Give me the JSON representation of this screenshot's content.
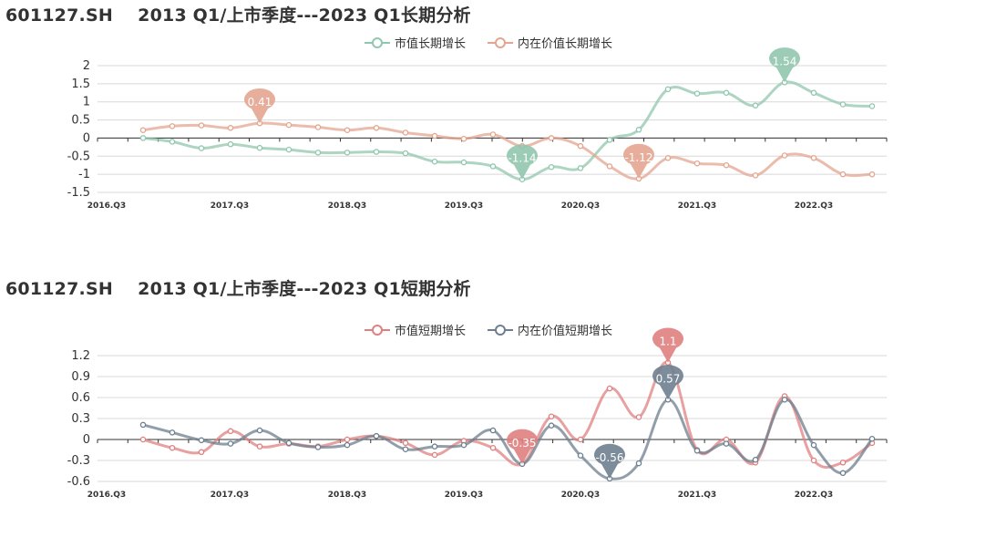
{
  "charts": [
    {
      "id": "long",
      "title": "601127.SH    2013 Q1/上市季度---2023 Q1长期分析"
    },
    {
      "id": "short",
      "title": "601127.SH    2013 Q1/上市季度---2023 Q1短期分析"
    }
  ],
  "chart_data": [
    {
      "type": "line",
      "title": "601127.SH    2013 Q1/上市季度---2023 Q1长期分析",
      "x_tick_labels": [
        "2016.Q3",
        "2017.Q3",
        "2018.Q3",
        "2019.Q3",
        "2020.Q3",
        "2021.Q3",
        "2022.Q3"
      ],
      "y_ticks": [
        "2",
        "1.5",
        "1",
        "0.5",
        "0",
        "-0.5",
        "-1",
        "-1.5"
      ],
      "ylim": [
        -1.5,
        2
      ],
      "legend_position": "top-center",
      "smooth": true,
      "grid": true,
      "series": [
        {
          "name": "市值长期增长",
          "color": "#91c7ae",
          "values": [
            0.0,
            -0.1,
            -0.28,
            -0.17,
            -0.27,
            -0.32,
            -0.4,
            -0.4,
            -0.38,
            -0.42,
            -0.65,
            -0.67,
            -0.78,
            -1.14,
            -0.8,
            -0.83,
            -0.05,
            0.23,
            1.35,
            1.23,
            1.25,
            0.9,
            1.54,
            1.25,
            0.93,
            0.88
          ],
          "markers": [
            {
              "label": "1.54",
              "index": 22
            },
            {
              "label": "-1.14",
              "index": 13
            }
          ]
        },
        {
          "name": "内在价值长期增长",
          "color": "#e4a590",
          "values": [
            0.22,
            0.33,
            0.35,
            0.28,
            0.41,
            0.36,
            0.3,
            0.22,
            0.28,
            0.15,
            0.06,
            -0.02,
            0.1,
            -0.22,
            0.0,
            -0.22,
            -0.78,
            -1.12,
            -0.55,
            -0.7,
            -0.75,
            -1.03,
            -0.48,
            -0.55,
            -1.0,
            -1.0
          ],
          "markers": [
            {
              "label": "0.41",
              "index": 4
            },
            {
              "label": "-1.12",
              "index": 17
            }
          ]
        }
      ]
    },
    {
      "type": "line",
      "title": "601127.SH    2013 Q1/上市季度---2023 Q1短期分析",
      "x_tick_labels": [
        "2016.Q3",
        "2017.Q3",
        "2018.Q3",
        "2019.Q3",
        "2020.Q3",
        "2021.Q3",
        "2022.Q3"
      ],
      "y_ticks": [
        "1.2",
        "0.9",
        "0.6",
        "0.3",
        "0",
        "-0.3",
        "-0.6"
      ],
      "ylim": [
        -0.6,
        1.2
      ],
      "legend_position": "top-center",
      "smooth": true,
      "grid": true,
      "series": [
        {
          "name": "市值短期增长",
          "color": "#e08080",
          "values": [
            0.0,
            -0.12,
            -0.18,
            0.12,
            -0.1,
            -0.06,
            -0.1,
            0.0,
            0.05,
            -0.05,
            -0.22,
            -0.02,
            -0.12,
            -0.35,
            0.33,
            0.0,
            0.73,
            0.32,
            1.1,
            -0.15,
            0.0,
            -0.33,
            0.62,
            -0.3,
            -0.33,
            -0.05
          ],
          "markers": [
            {
              "label": "1.1",
              "index": 18
            },
            {
              "label": "-0.35",
              "index": 13
            }
          ]
        },
        {
          "name": "内在价值短期增长",
          "color": "#6e7f8f",
          "values": [
            0.21,
            0.1,
            -0.01,
            -0.06,
            0.13,
            -0.05,
            -0.11,
            -0.08,
            0.05,
            -0.14,
            -0.1,
            -0.08,
            0.13,
            -0.35,
            0.2,
            -0.23,
            -0.56,
            -0.34,
            0.57,
            -0.16,
            -0.06,
            -0.29,
            0.57,
            -0.08,
            -0.48,
            0.01
          ],
          "markers": [
            {
              "label": "0.57",
              "index": 18
            },
            {
              "label": "-0.56",
              "index": 16
            }
          ]
        }
      ]
    }
  ]
}
